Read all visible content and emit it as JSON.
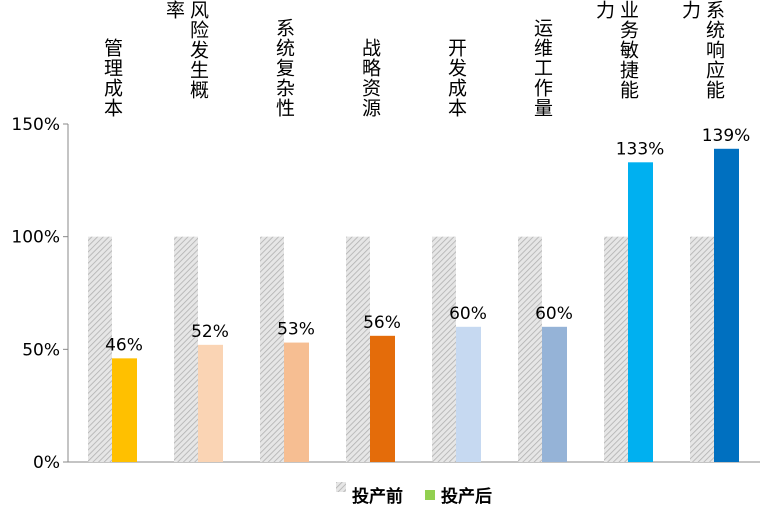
{
  "chart_data": {
    "type": "bar",
    "categories": [
      "管理成本",
      "风险发生概率",
      "系统复杂性",
      "战略资源",
      "开发成本",
      "运维工作量",
      "业务敏捷能力",
      "系统响应能力"
    ],
    "series": [
      {
        "name": "投产前",
        "values": [
          100,
          100,
          100,
          100,
          100,
          100,
          100,
          100
        ],
        "color": "#bfbfbf",
        "pattern": "hatched"
      },
      {
        "name": "投产后",
        "values": [
          46,
          52,
          53,
          56,
          60,
          60,
          133,
          139
        ],
        "legend_color": "#92D050",
        "colors": [
          "#FFC000",
          "#FAD4B4",
          "#F6BE92",
          "#E46C0A",
          "#C6D9F1",
          "#95B3D7",
          "#00B0F0",
          "#0070C0"
        ],
        "labels": [
          "46%",
          "52%",
          "53%",
          "56%",
          "60%",
          "60%",
          "133%",
          "139%"
        ]
      }
    ],
    "yticks": [
      "0%",
      "50%",
      "100%",
      "150%"
    ],
    "ylim": [
      0,
      150
    ],
    "grid": false,
    "legend": "bottom"
  }
}
